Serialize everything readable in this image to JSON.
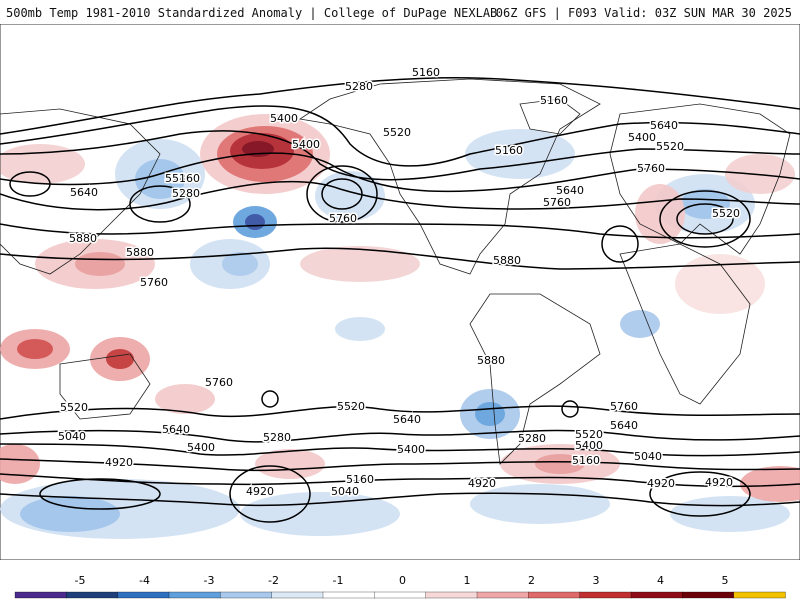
{
  "header": {
    "left_title": "500mb Temp 1981-2010 Standardized Anomaly | College of DuPage NEXLAB",
    "right_title": "06Z GFS | F093 Valid: 03Z SUN MAR 30 2025"
  },
  "map": {
    "projection": "global equirectangular",
    "contour_labels": [
      "5160",
      "5280",
      "5400",
      "5520",
      "5640",
      "5760",
      "5880",
      "4920",
      "5040"
    ],
    "height_labels": [
      {
        "text": "5160"
      },
      {
        "text": "5280"
      },
      {
        "text": "5160"
      },
      {
        "text": "5400"
      },
      {
        "text": "5520"
      },
      {
        "text": "5640"
      },
      {
        "text": "5400"
      },
      {
        "text": "5160"
      },
      {
        "text": "5280"
      },
      {
        "text": "5400"
      },
      {
        "text": "5520"
      },
      {
        "text": "5760"
      },
      {
        "text": "5640"
      },
      {
        "text": "5760"
      },
      {
        "text": "5520"
      },
      {
        "text": "5160"
      },
      {
        "text": "5280"
      },
      {
        "text": "5640"
      },
      {
        "text": "5760"
      },
      {
        "text": "5880"
      },
      {
        "text": "5880"
      },
      {
        "text": "5760"
      },
      {
        "text": "5880"
      },
      {
        "text": "5880"
      },
      {
        "text": "5760"
      },
      {
        "text": "5520"
      },
      {
        "text": "5640"
      },
      {
        "text": "5040"
      },
      {
        "text": "5400"
      },
      {
        "text": "5280"
      },
      {
        "text": "5520"
      },
      {
        "text": "5640"
      },
      {
        "text": "4920"
      },
      {
        "text": "4920"
      },
      {
        "text": "5040"
      },
      {
        "text": "5160"
      },
      {
        "text": "5400"
      },
      {
        "text": "5280"
      },
      {
        "text": "4920"
      },
      {
        "text": "5160"
      },
      {
        "text": "5400"
      },
      {
        "text": "5520"
      },
      {
        "text": "5640"
      },
      {
        "text": "5760"
      },
      {
        "text": "5040"
      },
      {
        "text": "4920"
      },
      {
        "text": "4920"
      }
    ]
  },
  "colorbar": {
    "ticks": [
      "-5",
      "-4",
      "-3",
      "-2",
      "-1",
      "0",
      "1",
      "2",
      "3",
      "4",
      "5"
    ],
    "colors": [
      "#4a2a8a",
      "#1f3f7a",
      "#2f6fc0",
      "#5f9fdc",
      "#a8c8ec",
      "#dce8f6",
      "#ffffff",
      "#ffffff",
      "#f6d8d8",
      "#eea6a6",
      "#de6a6a",
      "#c03030",
      "#8e0c16",
      "#6a0008",
      "#f2c200"
    ]
  }
}
